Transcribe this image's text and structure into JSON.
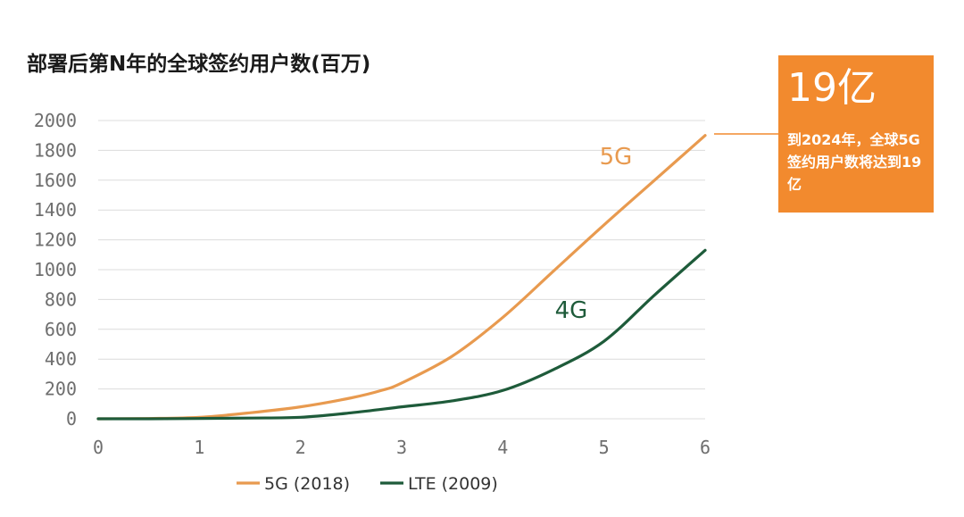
{
  "title": "部署后第N年的全球签约用户数(百万)",
  "colors": {
    "g5": "#E89A4F",
    "lte": "#1E5B3A",
    "callout_bg": "#F28A2E",
    "grid": "#dcdcdc"
  },
  "callout": {
    "headline": "19亿",
    "text": "到2024年，全球5G签约用户数将达到19亿"
  },
  "chart_data": {
    "type": "line",
    "title": "部署后第N年的全球签约用户数(百万)",
    "xlabel": "",
    "ylabel": "",
    "xlim": [
      0,
      6
    ],
    "ylim": [
      0,
      2000
    ],
    "x_ticks": [
      "0",
      "1",
      "2",
      "3",
      "4",
      "5",
      "6"
    ],
    "y_ticks": [
      "0",
      "200",
      "400",
      "600",
      "800",
      "1000",
      "1200",
      "1400",
      "1600",
      "1800",
      "2000"
    ],
    "grid": true,
    "legend_position": "bottom",
    "series": [
      {
        "name": "5G (2018)",
        "label": "5G",
        "color": "#E89A4F",
        "x": [
          0,
          0.5,
          1,
          1.5,
          2,
          2.5,
          2.8,
          3,
          3.5,
          4,
          4.5,
          5,
          5.5,
          6
        ],
        "y": [
          0,
          2,
          10,
          40,
          80,
          140,
          190,
          240,
          420,
          680,
          990,
          1300,
          1600,
          1900
        ]
      },
      {
        "name": "LTE (2009)",
        "label": "4G",
        "color": "#1E5B3A",
        "x": [
          0,
          0.5,
          1,
          1.5,
          2,
          2.5,
          3,
          3.5,
          4,
          4.5,
          5,
          5.5,
          6
        ],
        "y": [
          0,
          0,
          2,
          5,
          10,
          40,
          80,
          120,
          190,
          330,
          520,
          830,
          1130
        ]
      }
    ]
  }
}
